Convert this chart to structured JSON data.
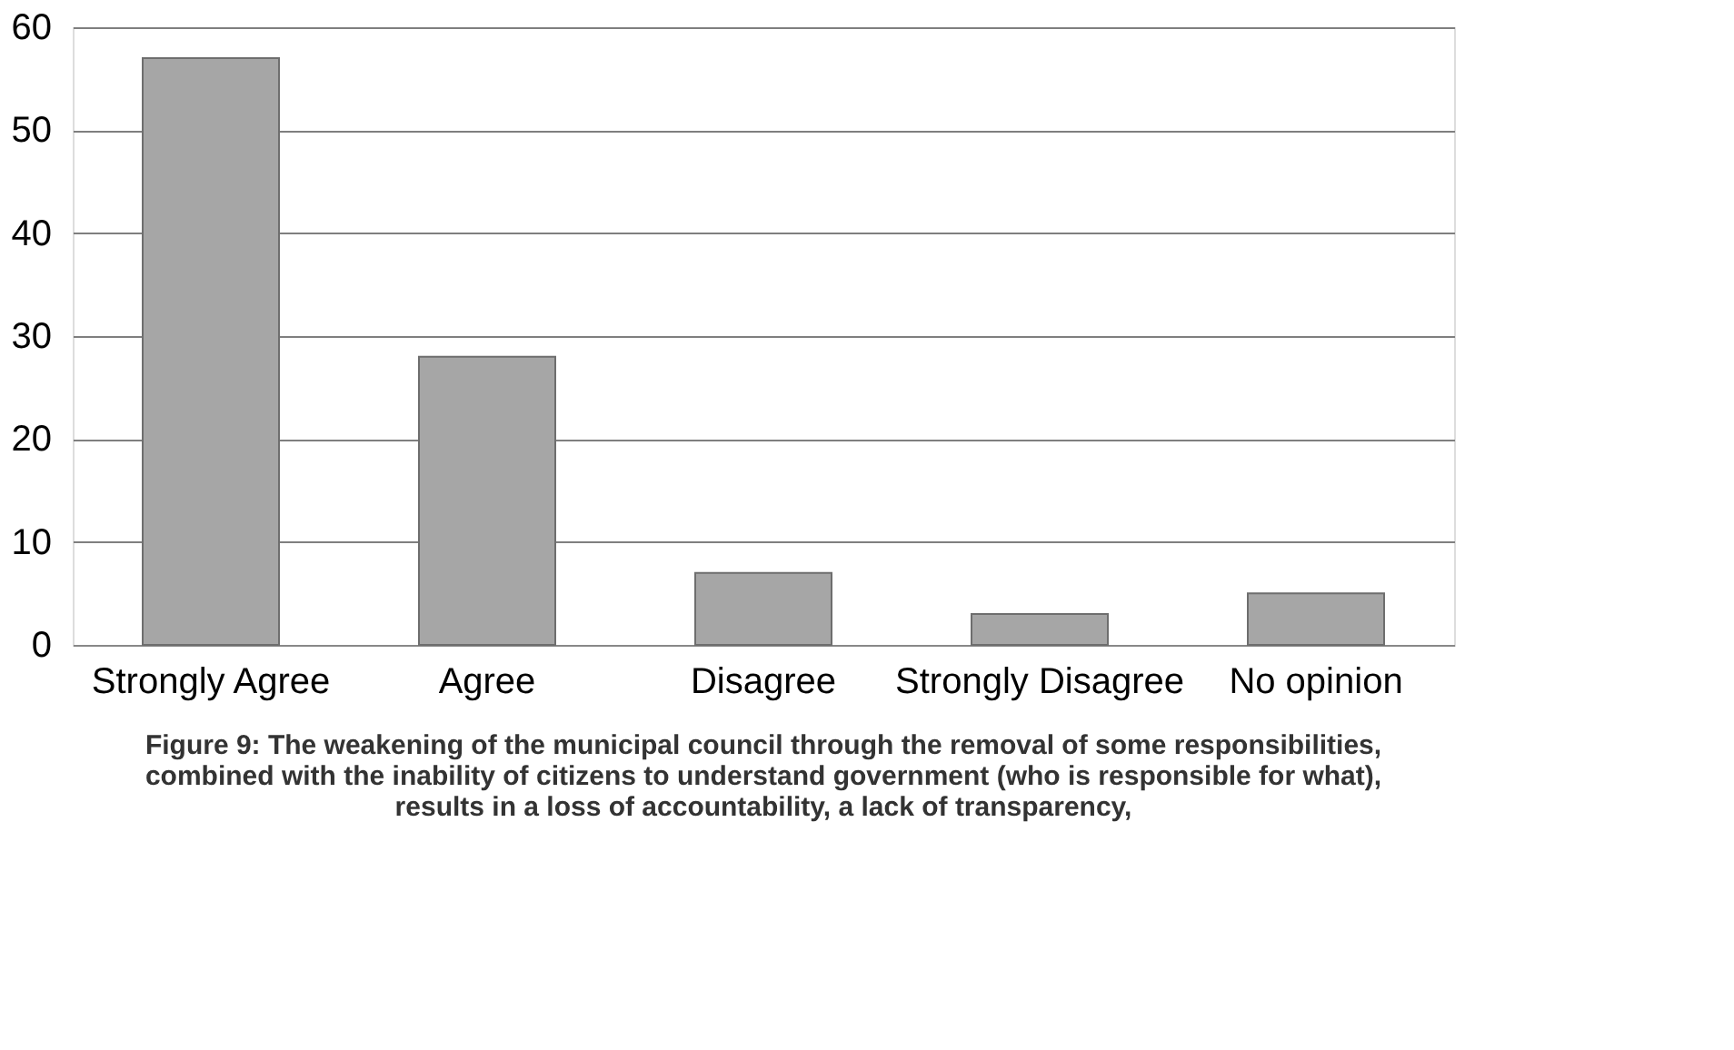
{
  "chart_data": {
    "type": "bar",
    "title": "Figure 9: The weakening of the municipal council through the removal of some responsibilities, combined with the inability of citizens to understand government (who is responsible for what), results in a loss of accountability, a lack of transparency,",
    "categories": [
      "Strongly Agree",
      "Agree",
      "Disagree",
      "Strongly Disagree",
      "No opinion"
    ],
    "values": [
      57,
      28,
      7,
      3,
      5
    ],
    "color": "#a6a6a6",
    "ylim": [
      0,
      60
    ],
    "yticks": [
      0,
      10,
      20,
      30,
      40,
      50,
      60
    ],
    "grid": "y"
  }
}
